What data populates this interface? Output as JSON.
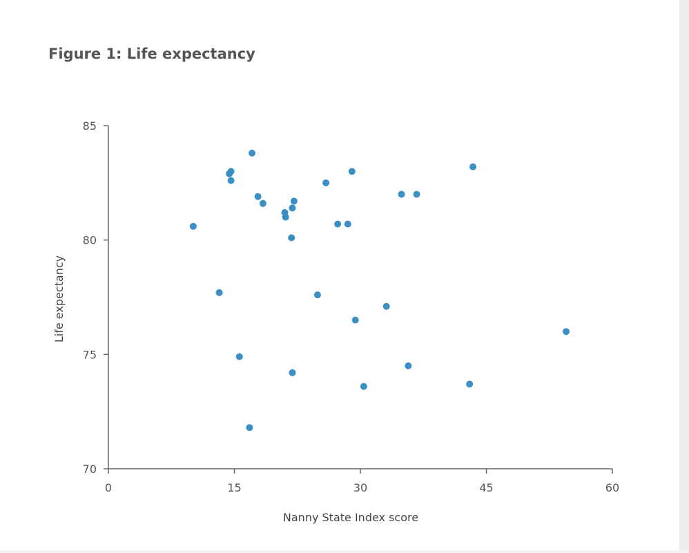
{
  "figure": {
    "title": "Figure 1: Life expectancy"
  },
  "chart_data": {
    "type": "scatter",
    "title": "Figure 1: Life expectancy",
    "xlabel": "Nanny State Index score",
    "ylabel": "Life expectancy",
    "xlim": [
      0,
      60
    ],
    "ylim": [
      70,
      85
    ],
    "xticks": [
      0,
      15,
      30,
      45,
      60
    ],
    "yticks": [
      70,
      75,
      80,
      85
    ],
    "grid": false,
    "legend": "none",
    "point_color": "#3a8fc3",
    "axis_color": "#666666",
    "series": [
      {
        "points": [
          {
            "x": 10.1,
            "y": 80.6
          },
          {
            "x": 13.2,
            "y": 77.7
          },
          {
            "x": 14.4,
            "y": 82.9
          },
          {
            "x": 14.6,
            "y": 83.0
          },
          {
            "x": 14.6,
            "y": 82.6
          },
          {
            "x": 15.6,
            "y": 74.9
          },
          {
            "x": 16.8,
            "y": 71.8
          },
          {
            "x": 17.1,
            "y": 83.8
          },
          {
            "x": 17.8,
            "y": 81.9
          },
          {
            "x": 18.4,
            "y": 81.6
          },
          {
            "x": 21.0,
            "y": 81.2
          },
          {
            "x": 21.1,
            "y": 81.0
          },
          {
            "x": 21.8,
            "y": 80.1
          },
          {
            "x": 21.9,
            "y": 81.4
          },
          {
            "x": 21.9,
            "y": 74.2
          },
          {
            "x": 22.1,
            "y": 81.7
          },
          {
            "x": 24.9,
            "y": 77.6
          },
          {
            "x": 25.9,
            "y": 82.5
          },
          {
            "x": 27.3,
            "y": 80.7
          },
          {
            "x": 28.5,
            "y": 80.7
          },
          {
            "x": 29.0,
            "y": 83.0
          },
          {
            "x": 29.4,
            "y": 76.5
          },
          {
            "x": 30.4,
            "y": 73.6
          },
          {
            "x": 33.1,
            "y": 77.1
          },
          {
            "x": 34.9,
            "y": 82.0
          },
          {
            "x": 35.7,
            "y": 74.5
          },
          {
            "x": 36.7,
            "y": 82.0
          },
          {
            "x": 43.0,
            "y": 73.7
          },
          {
            "x": 43.4,
            "y": 83.2
          },
          {
            "x": 54.5,
            "y": 76.0
          }
        ]
      }
    ]
  }
}
